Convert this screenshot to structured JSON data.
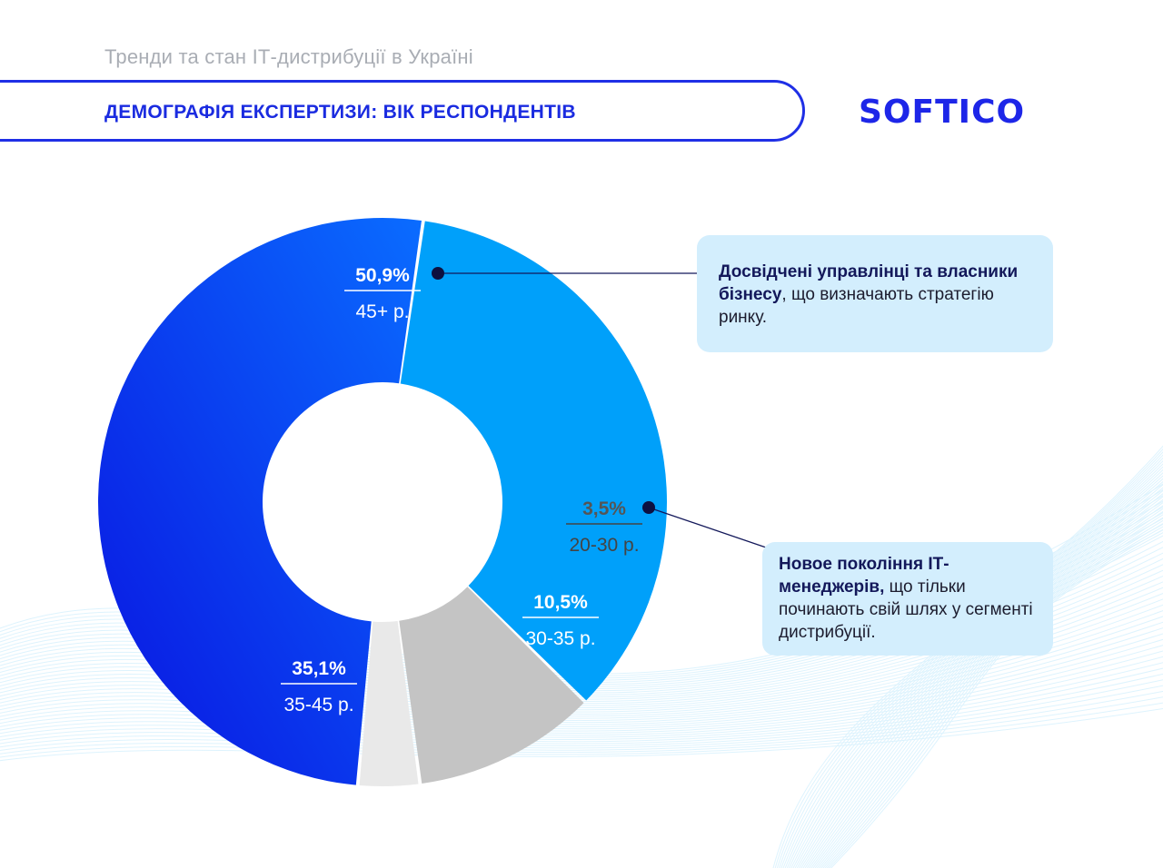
{
  "header": {
    "subtitle": "Тренди та стан ІТ-дистрибуції в Україні",
    "title": "ДЕМОГРАФІЯ ЕКСПЕРТИЗИ: ВІК РЕСПОНДЕНТІВ",
    "logo": "SOFTICO"
  },
  "chart_data": {
    "type": "pie",
    "title": "ДЕМОГРАФІЯ ЕКСПЕРТИЗИ: ВІК РЕСПОНДЕНТІВ",
    "categories": [
      "20-30 р.",
      "30-35 р.",
      "35-45 р.",
      "45+ р."
    ],
    "values": [
      3.5,
      10.5,
      35.1,
      50.9
    ],
    "value_labels": [
      "3,5%",
      "10,5%",
      "35,1%",
      "50,9%"
    ],
    "colors": [
      "#e9e9e9",
      "#c4c4c4",
      "#00a0fa",
      "#0a3ff0"
    ],
    "donut": true
  },
  "callouts": [
    {
      "highlight": "Досвідчені управлінці та власники бізнесу",
      "text": ", що визначають стратегію ринку."
    },
    {
      "highlight": "Новое покоління ІТ-менеджерів,",
      "text": " що тільки починають свій шлях у сегменті дистрибуції."
    }
  ],
  "colors": {
    "brand": "#1d26e8",
    "callout_bg": "#d3eefd",
    "subtitle": "#a9adb4"
  }
}
